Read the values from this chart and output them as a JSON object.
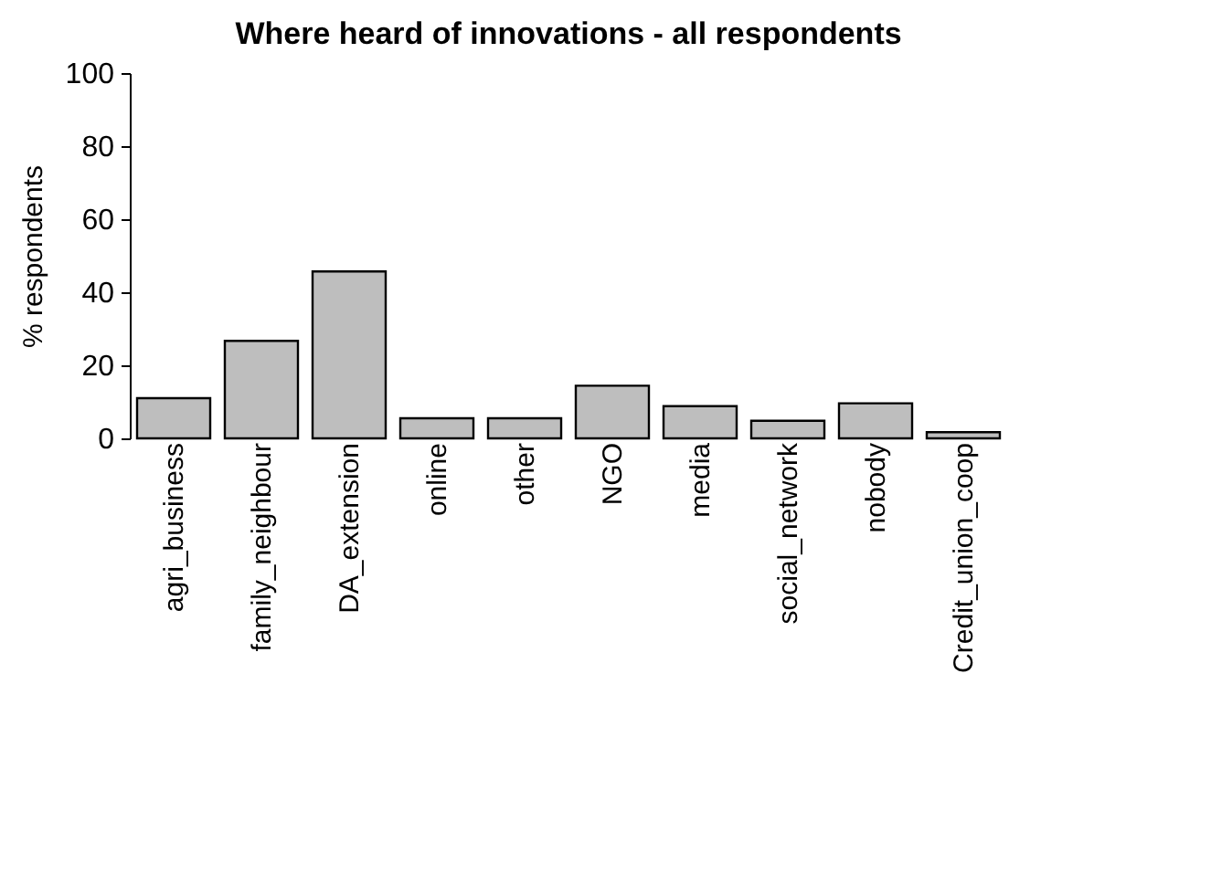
{
  "chart_data": {
    "type": "bar",
    "title": "Where heard of innovations - all respondents",
    "ylabel": "% respondents",
    "categories": [
      "agri_business",
      "family_neighbour",
      "DA_extension",
      "online",
      "other",
      "NGO",
      "media",
      "social_network",
      "nobody",
      "Credit_union_coop"
    ],
    "values": [
      11,
      26.7,
      45.7,
      5.5,
      5.5,
      14.4,
      8.8,
      4.8,
      9.6,
      1.7
    ],
    "color": "#bebebe",
    "ylim": [
      0,
      100
    ],
    "yticks": [
      0,
      20,
      40,
      60,
      80,
      100
    ]
  }
}
